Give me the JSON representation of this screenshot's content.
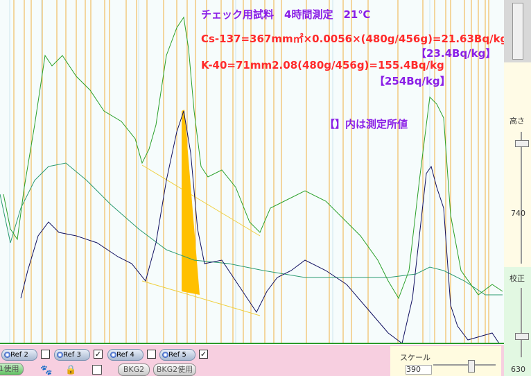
{
  "annotations": {
    "title": "チェック用試料　4時間測定　21℃",
    "cs137": "Cs-137=367mm㎡×0.0056×(480g/456g)=21.63Bq/kg",
    "cs137_measured": "【23.4Bq/kg】",
    "k40": "K-40=71mm2.08(480g/456g)=155.4Bq/kg",
    "k40_measured": "【254Bq/kg】",
    "note": "【】内は測定所値"
  },
  "right_panel": {
    "height_label": "高さ",
    "height_value": "740",
    "calibration_label": "校正",
    "calibration_value": "630"
  },
  "toolbar": {
    "refs": [
      "Ref 2",
      "Ref 3",
      "Ref 4",
      "Ref 5"
    ],
    "ref_checked": [
      false,
      true,
      false,
      true
    ],
    "use_button": "1使用",
    "bkg_button": "BKG2",
    "bkg_use_button": "BKG2使用",
    "scale_label": "スケール",
    "scale_value": "390"
  }
}
